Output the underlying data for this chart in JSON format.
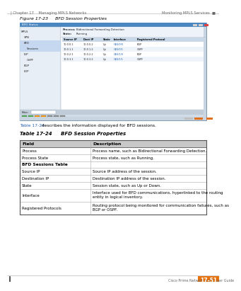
{
  "header_left": "| Chapter 17    Managing MPLS Networks",
  "header_right": "Monitoring MPLS Services  ■",
  "figure_label": "Figure 17-23     BFD Session Properties",
  "link_text": "Table 17-24",
  "link_desc": " describes the information displayed for BFD sessions.",
  "table_title": "Table 17-24     BFD Session Properties",
  "table_headers": [
    "Field",
    "Description"
  ],
  "table_rows": [
    [
      "Process",
      "Process name, such as Bidirectional Forwarding Detection."
    ],
    [
      "Process State",
      "Process state, such as Running."
    ],
    [
      "BFD Sessions Table",
      ""
    ],
    [
      "Source IP",
      "Source IP address of the session."
    ],
    [
      "Destination IP",
      "Destination IP address of the session."
    ],
    [
      "State",
      "Session state, such as Up or Down."
    ],
    [
      "Interface",
      "Interface used for BFD communications, hyperlinked to the routing\nentity in logical inventory."
    ],
    [
      "Registered Protocols",
      "Routing protocol being monitored for communication failures, such as\nBGP or OSPF."
    ]
  ],
  "footer_right": "Cisco Prime Network 4.3.2 User Guide",
  "footer_tag": "17-51",
  "footer_tag_bg": "#E8720C",
  "bg_color": "#FFFFFF",
  "table_header_bg": "#C8C8C8",
  "link_color": "#2060B0",
  "text_color": "#000000",
  "gray_text": "#666666",
  "dark_gray": "#333333",
  "ss_title_bar": "#4A86C0",
  "ss_left_bg": "#E8EEF5",
  "ss_right_bg": "#FFFFFF",
  "ss_highlight": "#C5D8F0",
  "ss_tbl_header": "#C8D8E8",
  "ss_row_alt": "#EEF4FA",
  "ss_link_color": "#2060B0",
  "ss_toolbar_bg": "#D0DCE8",
  "btn_green": "#4CAF50",
  "btn_orange": "#FF9800",
  "btn_gray": "#909090",
  "ss_border": "#8899AA"
}
